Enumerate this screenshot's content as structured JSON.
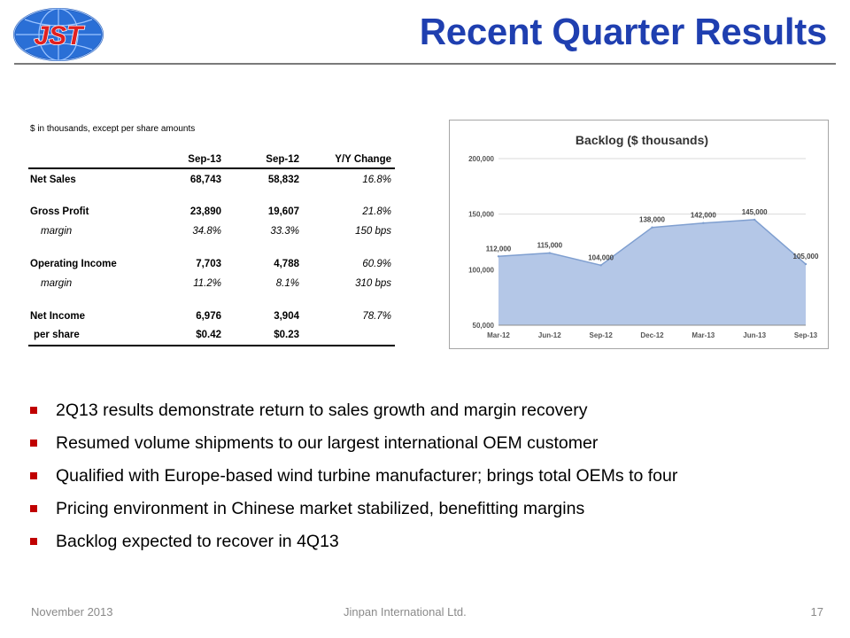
{
  "header": {
    "logo_text": "JST",
    "title": "Recent Quarter Results"
  },
  "financials": {
    "note": "$ in thousands, except per share amounts",
    "columns": [
      "Sep-13",
      "Sep-12",
      "Y/Y Change"
    ],
    "rows": [
      {
        "label": "Net Sales",
        "values": [
          "68,743",
          "58,832",
          "16.8%"
        ],
        "style": "bold"
      },
      {
        "label": "Gross Profit",
        "values": [
          "23,890",
          "19,607",
          "21.8%"
        ],
        "style": "bold"
      },
      {
        "label": "margin",
        "values": [
          "34.8%",
          "33.3%",
          "150 bps"
        ],
        "style": "italic"
      },
      {
        "label": "Operating Income",
        "values": [
          "7,703",
          "4,788",
          "60.9%"
        ],
        "style": "bold"
      },
      {
        "label": "margin",
        "values": [
          "11.2%",
          "8.1%",
          "310 bps"
        ],
        "style": "italic"
      },
      {
        "label": "Net Income",
        "values": [
          "6,976",
          "3,904",
          "78.7%"
        ],
        "style": "bold"
      },
      {
        "label": "per share",
        "values": [
          "$0.42",
          "$0.23",
          ""
        ],
        "style": "bold"
      }
    ]
  },
  "chart_data": {
    "type": "area",
    "title": "Backlog ($ thousands)",
    "categories": [
      "Mar-12",
      "Jun-12",
      "Sep-12",
      "Dec-12",
      "Mar-13",
      "Jun-13",
      "Sep-13"
    ],
    "values": [
      112000,
      115000,
      104000,
      138000,
      142000,
      145000,
      105000
    ],
    "data_labels": [
      "112,000",
      "115,000",
      "104,000",
      "138,000",
      "142,000",
      "145,000",
      "105,000"
    ],
    "y_ticks": [
      50000,
      100000,
      150000,
      200000
    ],
    "y_tick_labels": [
      "50,000",
      "100,000",
      "150,000",
      "200,000"
    ],
    "ylim": [
      50000,
      200000
    ],
    "grid": true,
    "legend": "none",
    "fill_color": "#b4c7e7",
    "line_color": "#7f9fd0"
  },
  "bullets": [
    "2Q13 results demonstrate return to sales growth and margin recovery",
    "Resumed volume shipments to our largest international OEM customer",
    "Qualified with Europe-based wind turbine manufacturer; brings total OEMs to four",
    "Pricing environment in Chinese market stabilized, benefitting margins",
    "Backlog expected to recover in 4Q13"
  ],
  "footer": {
    "date": "November 2013",
    "company": "Jinpan International Ltd.",
    "page": "17"
  },
  "colors": {
    "title": "#1f3fb0",
    "bullet": "#c00000",
    "logo_blue": "#2a6fd6",
    "logo_red": "#e02020"
  }
}
